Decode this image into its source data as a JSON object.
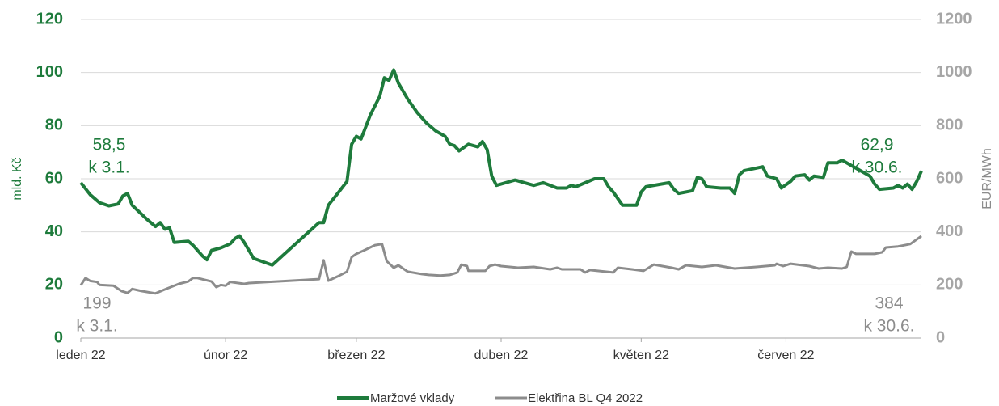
{
  "chart_data": {
    "type": "line",
    "y_label": "mld. Kč",
    "y2_label": "EUR/MWh",
    "xlim": [
      0,
      180
    ],
    "xticks": [
      {
        "value": 0,
        "label": "leden 22"
      },
      {
        "value": 31,
        "label": "únor 22"
      },
      {
        "value": 59,
        "label": "březen 22"
      },
      {
        "value": 90,
        "label": "duben 22"
      },
      {
        "value": 120,
        "label": "květen 22"
      },
      {
        "value": 151,
        "label": "červen 22"
      }
    ],
    "ylim": [
      0,
      120
    ],
    "yticks": [
      0,
      20,
      40,
      60,
      80,
      100,
      120
    ],
    "y2lim": [
      0,
      1200
    ],
    "y2ticks": [
      0,
      200,
      400,
      600,
      800,
      1000,
      1200
    ],
    "grid": true,
    "legend": "bottom",
    "series": [
      {
        "name": "Maržové vklady",
        "color": "#1e7b3c",
        "axis": "y",
        "x": [
          0,
          2,
          4,
          6,
          8,
          9,
          10,
          11,
          14,
          16,
          17,
          18,
          19,
          20,
          23,
          24,
          26,
          27,
          28,
          30,
          32,
          33,
          34,
          35,
          37,
          41,
          51,
          52,
          53,
          55,
          57,
          58,
          59,
          60,
          62,
          64,
          65,
          66,
          67,
          68,
          70,
          72,
          74,
          76,
          78,
          79,
          80,
          81,
          83,
          85,
          86,
          87,
          88,
          89,
          93,
          95,
          97,
          99,
          102,
          104,
          105,
          106,
          110,
          112,
          113,
          114,
          116,
          119,
          120,
          121,
          126,
          127,
          128,
          131,
          132,
          133,
          134,
          137,
          139,
          140,
          141,
          142,
          146,
          147,
          149,
          150,
          152,
          153,
          155,
          156,
          157,
          159,
          160,
          162,
          163,
          165,
          169,
          170,
          171,
          174,
          175,
          176,
          177,
          178,
          179,
          180
        ],
        "values": [
          58.5,
          54,
          51,
          49.8,
          50.5,
          53.5,
          54.5,
          50,
          45,
          42,
          43.5,
          41,
          41.5,
          36,
          36.5,
          35,
          31,
          29.5,
          33,
          34,
          35.5,
          37.5,
          38.5,
          36,
          30,
          27.5,
          43.5,
          43.5,
          50,
          54.5,
          59,
          73,
          76,
          75,
          84,
          91,
          98,
          97,
          101,
          96,
          90,
          85,
          81,
          78,
          76,
          73,
          72.5,
          70.5,
          73,
          72,
          74,
          71,
          61,
          57.5,
          59.5,
          58.5,
          57.5,
          58.5,
          56.5,
          56.5,
          57.5,
          57,
          60,
          60,
          57,
          55,
          50,
          50,
          55,
          57,
          58.5,
          56,
          54.5,
          55.5,
          60.5,
          60,
          57,
          56.5,
          56.5,
          54.5,
          61.5,
          63,
          64.5,
          61,
          60,
          56.5,
          59,
          61,
          61.5,
          59.5,
          61,
          60.5,
          66,
          66,
          67,
          65,
          61,
          58,
          56,
          56.5,
          57.5,
          56.5,
          58,
          56,
          59,
          62.9
        ]
      },
      {
        "name": "Elektřina BL Q4 2022",
        "color": "#8c8c8c",
        "axis": "y2",
        "x": [
          0,
          1,
          2,
          3.5,
          4,
          7,
          8.7,
          10,
          11,
          13,
          16,
          18,
          21,
          23,
          24,
          25,
          28,
          29,
          30,
          31,
          32,
          35,
          36,
          51,
          52,
          53,
          55,
          57,
          58,
          59,
          60.5,
          63,
          64.5,
          65.5,
          67,
          68,
          70,
          73,
          74.5,
          77,
          79,
          80.6,
          81.5,
          82.7,
          83,
          86.6,
          87.5,
          88.7,
          90,
          93.6,
          97,
          100.5,
          102,
          103,
          107,
          108,
          109,
          114,
          115,
          118,
          120.5,
          122.7,
          126.5,
          128,
          129.6,
          133,
          136,
          140,
          144.7,
          148.6,
          149,
          150.4,
          152,
          156,
          158,
          160,
          163,
          164,
          165,
          166,
          170,
          171.6,
          172.4,
          175,
          177.6,
          180
        ],
        "values": [
          199,
          226,
          215,
          211,
          200,
          197,
          177,
          170,
          185,
          177,
          168,
          183,
          204,
          213,
          226,
          226,
          213,
          192,
          200,
          197,
          211,
          204,
          207,
          222,
          293,
          216,
          232,
          250,
          305,
          317,
          329,
          350,
          354,
          290,
          265,
          274,
          250,
          241,
          238,
          235,
          238,
          247,
          277,
          271,
          253,
          253,
          271,
          277,
          271,
          265,
          268,
          259,
          265,
          259,
          259,
          247,
          256,
          247,
          265,
          259,
          253,
          277,
          265,
          259,
          274,
          268,
          274,
          262,
          268,
          274,
          280,
          271,
          280,
          271,
          262,
          265,
          262,
          268,
          326,
          317,
          317,
          323,
          341,
          345,
          354,
          384
        ]
      }
    ],
    "annotations": [
      [
        "58,5",
        "k 3.1."
      ],
      [
        "62,9",
        "k 30.6."
      ],
      [
        "199",
        "k 3.1."
      ],
      [
        "384",
        "k 30.6."
      ]
    ]
  }
}
